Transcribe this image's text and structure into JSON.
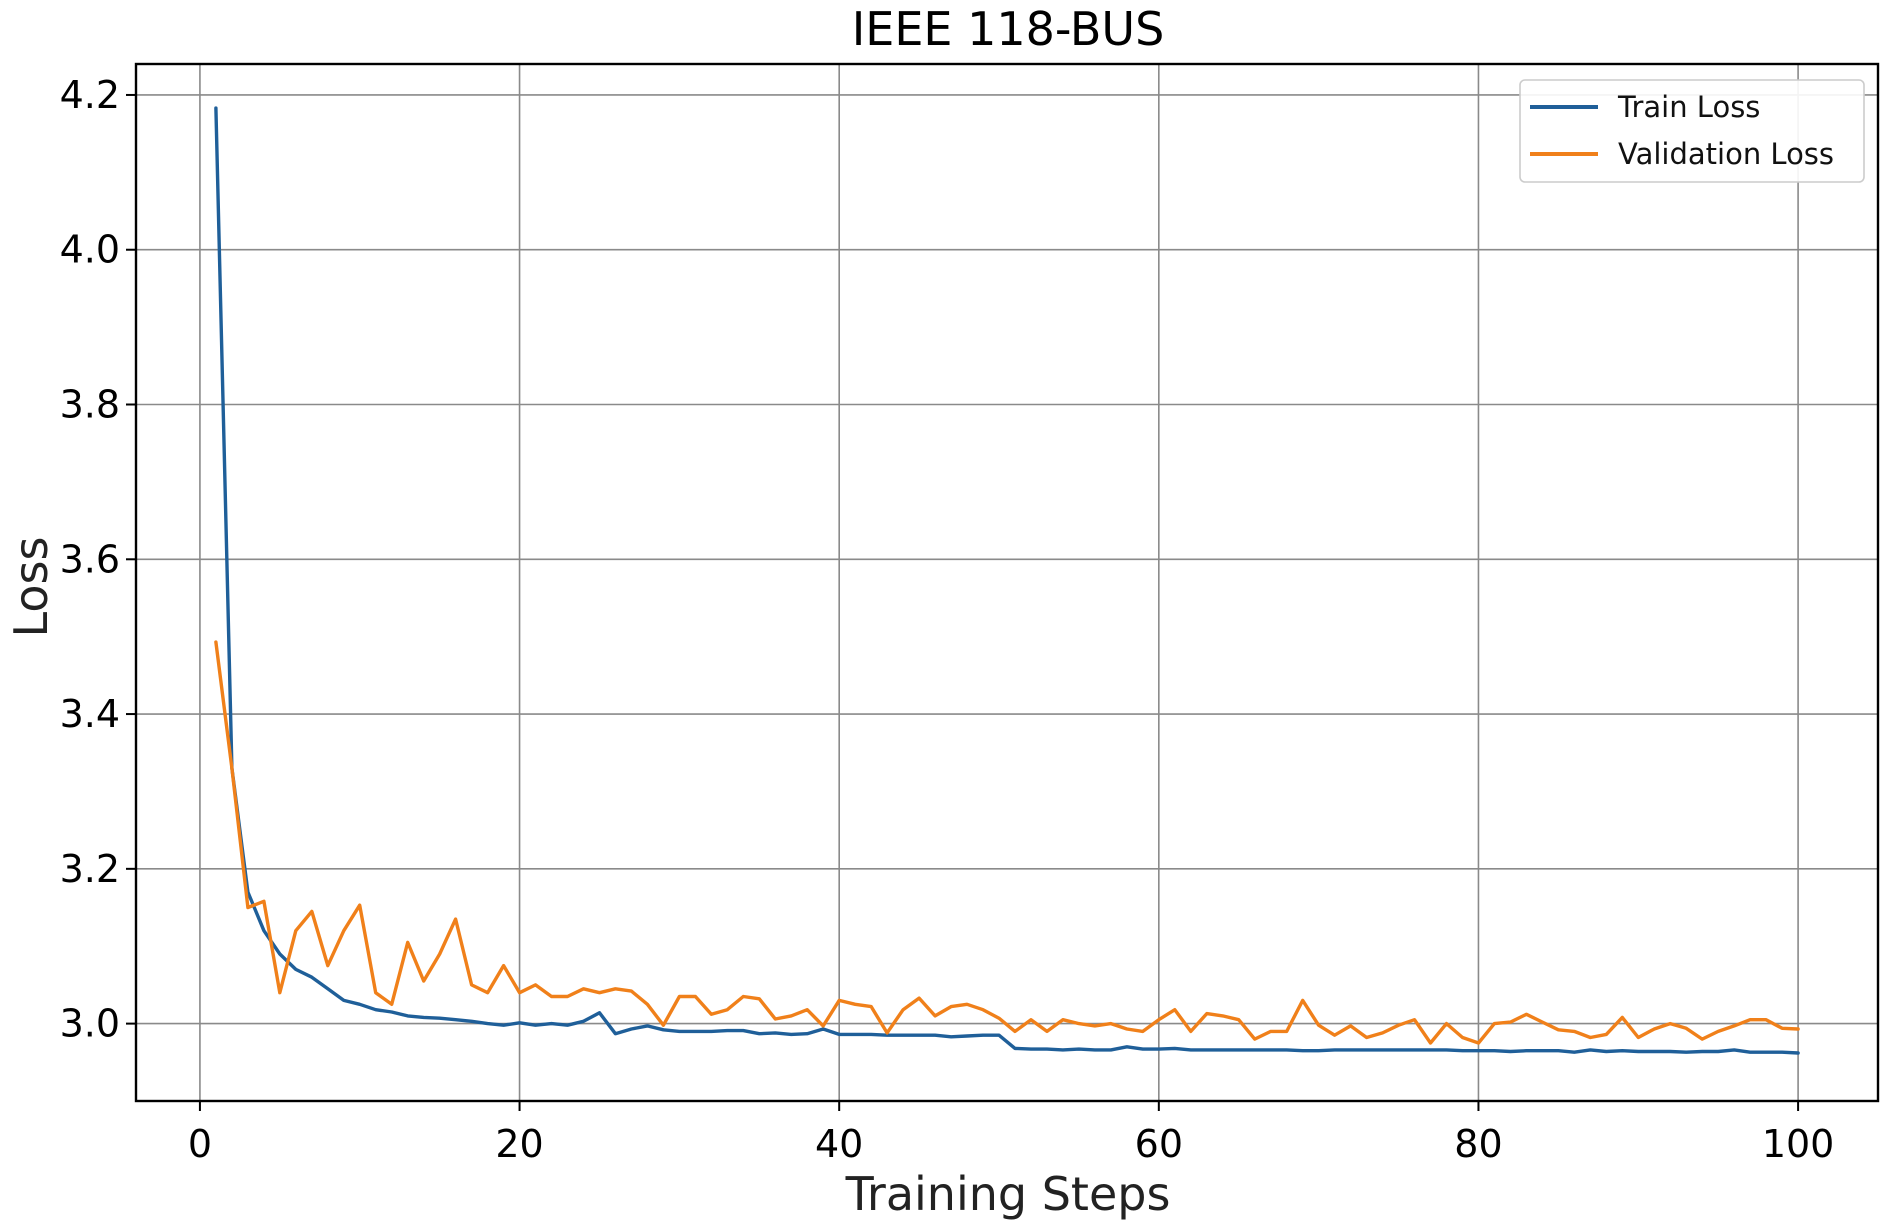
{
  "chart_data": {
    "type": "line",
    "title": "IEEE 118-BUS",
    "xlabel": "Training Steps",
    "ylabel": "Loss",
    "xlim": [
      -4,
      105
    ],
    "ylim": [
      2.9,
      4.24
    ],
    "xticks": [
      0,
      20,
      40,
      60,
      80,
      100
    ],
    "yticks": [
      3.0,
      3.2,
      3.4,
      3.6,
      3.8,
      4.0,
      4.2
    ],
    "xtick_labels": [
      "0",
      "20",
      "40",
      "60",
      "80",
      "100"
    ],
    "ytick_labels": [
      "3.0",
      "3.2",
      "3.4",
      "3.6",
      "3.8",
      "4.0",
      "4.2"
    ],
    "grid": true,
    "legend_position": "top-right",
    "x": [
      1,
      2,
      3,
      4,
      5,
      6,
      7,
      8,
      9,
      10,
      11,
      12,
      13,
      14,
      15,
      16,
      17,
      18,
      19,
      20,
      21,
      22,
      23,
      24,
      25,
      26,
      27,
      28,
      29,
      30,
      31,
      32,
      33,
      34,
      35,
      36,
      37,
      38,
      39,
      40,
      41,
      42,
      43,
      44,
      45,
      46,
      47,
      48,
      49,
      50,
      51,
      52,
      53,
      54,
      55,
      56,
      57,
      58,
      59,
      60,
      61,
      62,
      63,
      64,
      65,
      66,
      67,
      68,
      69,
      70,
      71,
      72,
      73,
      74,
      75,
      76,
      77,
      78,
      79,
      80,
      81,
      82,
      83,
      84,
      85,
      86,
      87,
      88,
      89,
      90,
      91,
      92,
      93,
      94,
      95,
      96,
      97,
      98,
      99,
      100
    ],
    "series": [
      {
        "name": "Train Loss",
        "color": "#1f5f99",
        "values": [
          4.183,
          3.33,
          3.17,
          3.12,
          3.09,
          3.07,
          3.06,
          3.045,
          3.03,
          3.025,
          3.018,
          3.015,
          3.01,
          3.008,
          3.007,
          3.005,
          3.003,
          3.0,
          2.998,
          3.001,
          2.998,
          3.0,
          2.998,
          3.003,
          3.014,
          2.987,
          2.993,
          2.997,
          2.992,
          2.99,
          2.99,
          2.99,
          2.991,
          2.991,
          2.987,
          2.988,
          2.986,
          2.987,
          2.993,
          2.986,
          2.986,
          2.986,
          2.985,
          2.985,
          2.985,
          2.985,
          2.983,
          2.984,
          2.985,
          2.985,
          2.968,
          2.967,
          2.967,
          2.966,
          2.967,
          2.966,
          2.966,
          2.97,
          2.967,
          2.967,
          2.968,
          2.966,
          2.966,
          2.966,
          2.966,
          2.966,
          2.966,
          2.966,
          2.965,
          2.965,
          2.966,
          2.966,
          2.966,
          2.966,
          2.966,
          2.966,
          2.966,
          2.966,
          2.965,
          2.965,
          2.965,
          2.964,
          2.965,
          2.965,
          2.965,
          2.963,
          2.966,
          2.964,
          2.965,
          2.964,
          2.964,
          2.964,
          2.963,
          2.964,
          2.964,
          2.966,
          2.963,
          2.963,
          2.963,
          2.962
        ]
      },
      {
        "name": "Validation Loss",
        "color": "#f0801a",
        "values": [
          3.493,
          3.33,
          3.15,
          3.158,
          3.04,
          3.12,
          3.145,
          3.075,
          3.12,
          3.153,
          3.04,
          3.025,
          3.105,
          3.055,
          3.09,
          3.135,
          3.05,
          3.04,
          3.075,
          3.04,
          3.05,
          3.035,
          3.035,
          3.045,
          3.04,
          3.045,
          3.042,
          3.025,
          2.998,
          3.035,
          3.035,
          3.012,
          3.018,
          3.035,
          3.032,
          3.006,
          3.01,
          3.018,
          2.997,
          3.03,
          3.025,
          3.022,
          2.988,
          3.018,
          3.033,
          3.01,
          3.022,
          3.025,
          3.018,
          3.007,
          2.99,
          3.005,
          2.99,
          3.005,
          3.0,
          2.997,
          3.0,
          2.993,
          2.99,
          3.005,
          3.018,
          2.99,
          3.013,
          3.01,
          3.005,
          2.98,
          2.99,
          2.99,
          3.03,
          2.998,
          2.985,
          2.997,
          2.982,
          2.988,
          2.998,
          3.005,
          2.975,
          3.0,
          2.982,
          2.975,
          3.0,
          3.002,
          3.012,
          3.002,
          2.992,
          2.99,
          2.982,
          2.986,
          3.008,
          2.982,
          2.993,
          3.0,
          2.994,
          2.98,
          2.99,
          2.997,
          3.005,
          3.005,
          2.994,
          2.993
        ]
      }
    ]
  }
}
